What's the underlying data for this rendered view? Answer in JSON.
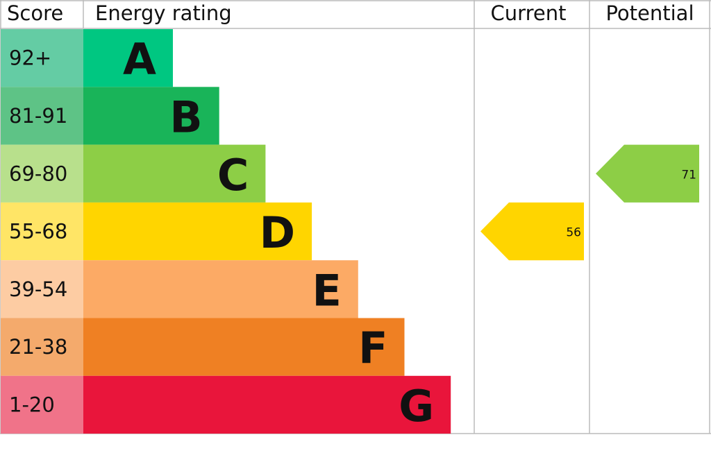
{
  "headers": {
    "score": "Score",
    "rating": "Energy rating",
    "current": "Current",
    "potential": "Potential"
  },
  "bands": [
    {
      "score": "92+",
      "letter": "A",
      "color": "#00c781",
      "light": "#64cca4"
    },
    {
      "score": "81-91",
      "letter": "B",
      "color": "#19b459",
      "light": "#5ec386"
    },
    {
      "score": "69-80",
      "letter": "C",
      "color": "#8dce46",
      "light": "#b8e08c"
    },
    {
      "score": "55-68",
      "letter": "D",
      "color": "#ffd500",
      "light": "#ffe566"
    },
    {
      "score": "39-54",
      "letter": "E",
      "color": "#fcaa65",
      "light": "#fdcca3"
    },
    {
      "score": "21-38",
      "letter": "F",
      "color": "#ef8023",
      "light": "#f4aa6c"
    },
    {
      "score": "1-20",
      "letter": "G",
      "color": "#e9153b",
      "light": "#f07389"
    }
  ],
  "current": {
    "value": 56
  },
  "potential": {
    "value": 71
  }
}
